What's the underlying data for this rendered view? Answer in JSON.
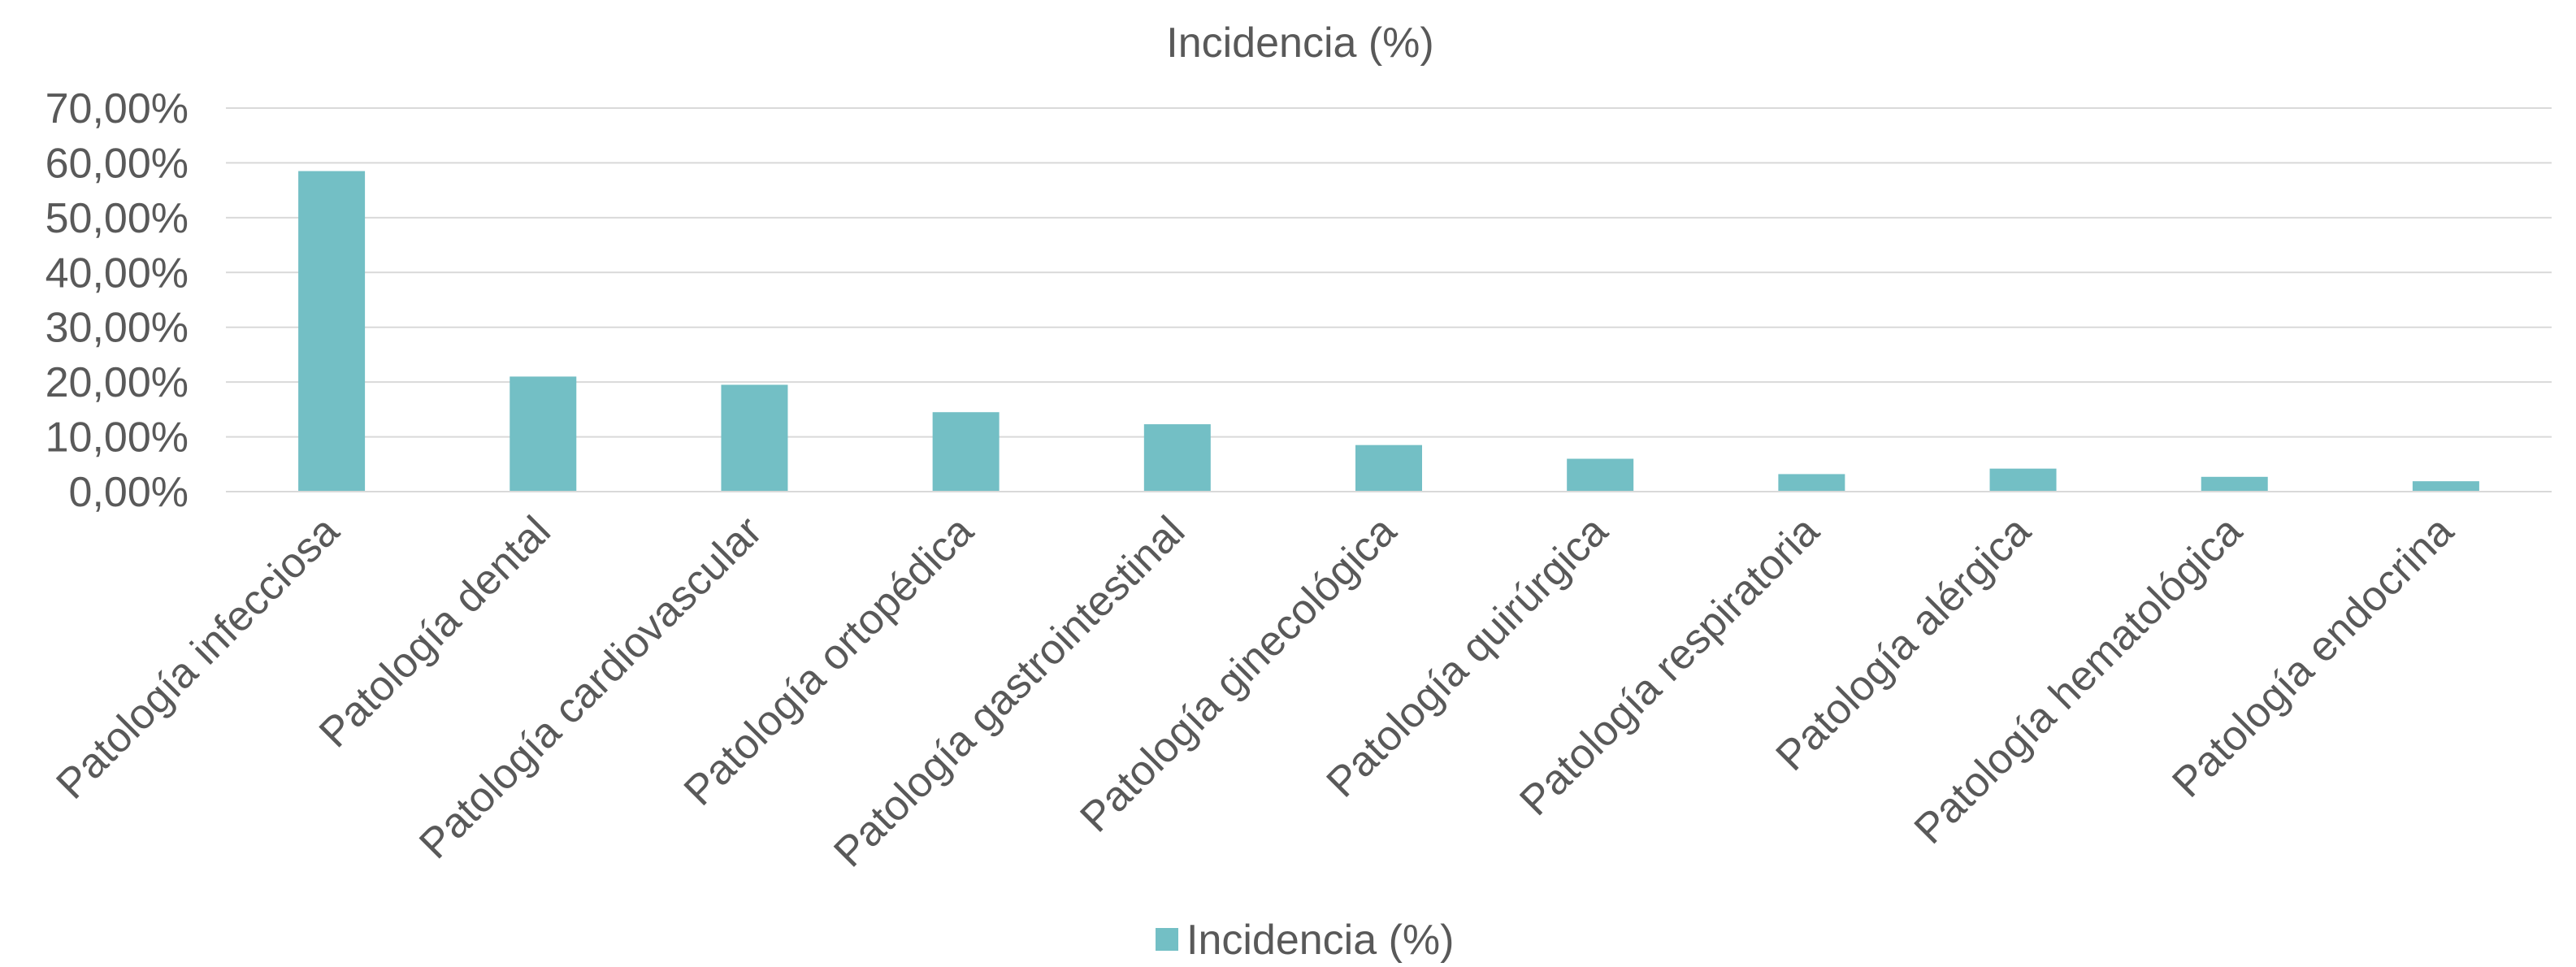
{
  "chart_data": {
    "type": "bar",
    "title": "Incidencia (%)",
    "xlabel": "",
    "ylabel": "",
    "categories": [
      "Patología infecciosa",
      "Patología dental",
      "Patología cardiovascular",
      "Patología ortopédica",
      "Patología gastrointestinal",
      "Patología ginecológica",
      "Patología quirúrgica",
      "Patología respiratoria",
      "Patología alérgica",
      "Patología hematológica",
      "Patología endocrina"
    ],
    "series": [
      {
        "name": "Incidencia (%)",
        "color": "#73bfc5",
        "values": [
          58.5,
          21.0,
          19.5,
          14.5,
          12.3,
          8.5,
          6.0,
          3.2,
          4.2,
          2.7,
          1.9
        ]
      }
    ],
    "ylim": [
      0,
      70
    ],
    "y_ticks": [
      "0,00%",
      "10,00%",
      "20,00%",
      "30,00%",
      "40,00%",
      "50,00%",
      "60,00%",
      "70,00%"
    ],
    "grid": true,
    "legend_position": "bottom"
  }
}
